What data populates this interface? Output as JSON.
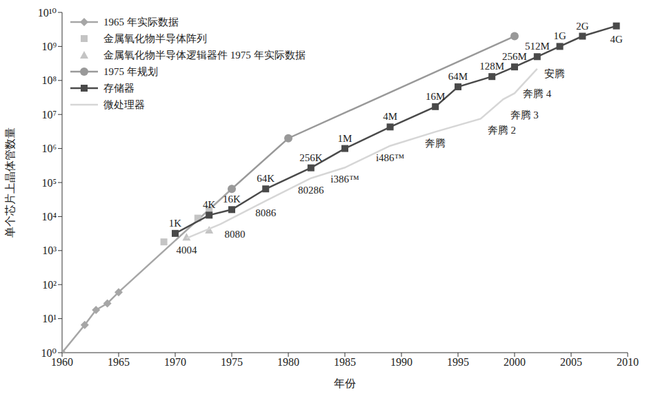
{
  "chart_data": {
    "type": "line",
    "log": "y",
    "grid": false,
    "legend": "top-left",
    "x_label": "年份",
    "y_label": "单个芯片上晶体管数量",
    "xlim": [
      1960,
      2010
    ],
    "xticks": [
      1960,
      1965,
      1970,
      1975,
      1980,
      1985,
      1990,
      1995,
      2000,
      2005,
      2010
    ],
    "ylim": [
      1,
      10000000000
    ],
    "yticks": [
      {
        "value": 1,
        "label": "10⁰"
      },
      {
        "value": 10,
        "label": "10¹"
      },
      {
        "value": 100,
        "label": "10²"
      },
      {
        "value": 1000,
        "label": "10³"
      },
      {
        "value": 10000,
        "label": "10⁴"
      },
      {
        "value": 100000,
        "label": "10⁵"
      },
      {
        "value": 1000000,
        "label": "10⁶"
      },
      {
        "value": 10000000,
        "label": "10⁷"
      },
      {
        "value": 100000000,
        "label": "10⁸"
      },
      {
        "value": 1000000000,
        "label": "10⁹"
      },
      {
        "value": 10000000000,
        "label": "10¹⁰"
      }
    ],
    "series": [
      {
        "name": "1965 年实际数据",
        "color": "#a6a6a6",
        "marker": "diamond",
        "line_style": "solid",
        "x": [
          1960,
          1962,
          1963,
          1964,
          1965,
          1975
        ],
        "values": [
          1,
          6.5,
          18,
          28,
          60,
          65000
        ]
      },
      {
        "name": "金属氧化物半导体阵列",
        "color": "#c4c4c4",
        "marker": "square",
        "line_style": "none",
        "x": [
          1969,
          1972,
          1973
        ],
        "values": [
          1800,
          9000,
          16000
        ]
      },
      {
        "name": "金属氧化物半导体逻辑器件 1975 年实际数据",
        "color": "#c4c4c4",
        "marker": "triangle",
        "line_style": "none",
        "x": [
          1971,
          1973
        ],
        "values": [
          2500,
          4000
        ]
      },
      {
        "name": "1975 年规划",
        "color": "#999999",
        "marker": "circle",
        "line_style": "solid",
        "x": [
          1975,
          1980,
          2000
        ],
        "values": [
          65000,
          2000000,
          2000000000
        ]
      },
      {
        "name": "存储器",
        "color": "#4a4a4a",
        "marker": "square",
        "line_style": "solid",
        "x": [
          1970,
          1973,
          1975,
          1978,
          1982,
          1985,
          1989,
          1993,
          1995,
          1998,
          2000,
          2002,
          2004,
          2006,
          2009
        ],
        "values": [
          3200,
          11000,
          16000,
          65000,
          270000,
          1000000,
          4300000,
          17000000,
          65000000,
          130000000,
          250000000,
          500000000,
          1000000000,
          2000000000,
          4000000000
        ],
        "labels": [
          "1K",
          "4K",
          "16K",
          "64K",
          "256K",
          "1M",
          "4M",
          "16M",
          "64M",
          "128M",
          "256M",
          "512M",
          "1G",
          "2G",
          "4G"
        ]
      },
      {
        "name": "微处理器",
        "color": "#d6d6d6",
        "marker": "none",
        "line_style": "solid",
        "x": [
          1971,
          1974,
          1978,
          1982,
          1985,
          1989,
          1993,
          1997,
          1999,
          2000,
          2002
        ],
        "values": [
          2300,
          6000,
          29000,
          134000,
          275000,
          1200000,
          3100000,
          7500000,
          28000000,
          42000000,
          220000000
        ],
        "labels": [
          "4004",
          "8080",
          "8086",
          "80286",
          "i386™",
          "i486™",
          "奔腾",
          "奔腾 2",
          "奔腾 3",
          "奔腾 4",
          "安腾"
        ]
      }
    ]
  }
}
